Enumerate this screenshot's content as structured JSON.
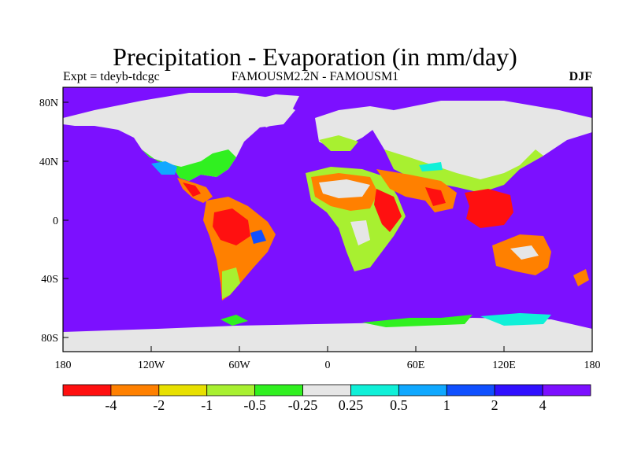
{
  "title": "Precipitation - Evaporation (in mm/day)",
  "subtitle_left": "Expt = tdeyb-tdcgc",
  "subtitle_center": "FAMOUSM2.2N - FAMOUSM1",
  "subtitle_right": "DJF",
  "map": {
    "lat_ticks": [
      "80N",
      "40N",
      "0",
      "40S",
      "80S"
    ],
    "lon_ticks": [
      "180",
      "120W",
      "60W",
      "0",
      "60E",
      "120E",
      "180"
    ],
    "ocean_color": "#7c10ff"
  },
  "colorbar": {
    "colors": [
      "#ff1010",
      "#ff8000",
      "#e8e000",
      "#a8f030",
      "#30f020",
      "#e6e6e6",
      "#10f0d8",
      "#10a8ff",
      "#1050ff",
      "#3010ff",
      "#7c10ff"
    ],
    "labels": [
      "-4",
      "-2",
      "-1",
      "-0.5",
      "-0.25",
      "0.25",
      "0.5",
      "1",
      "2",
      "4"
    ]
  }
}
